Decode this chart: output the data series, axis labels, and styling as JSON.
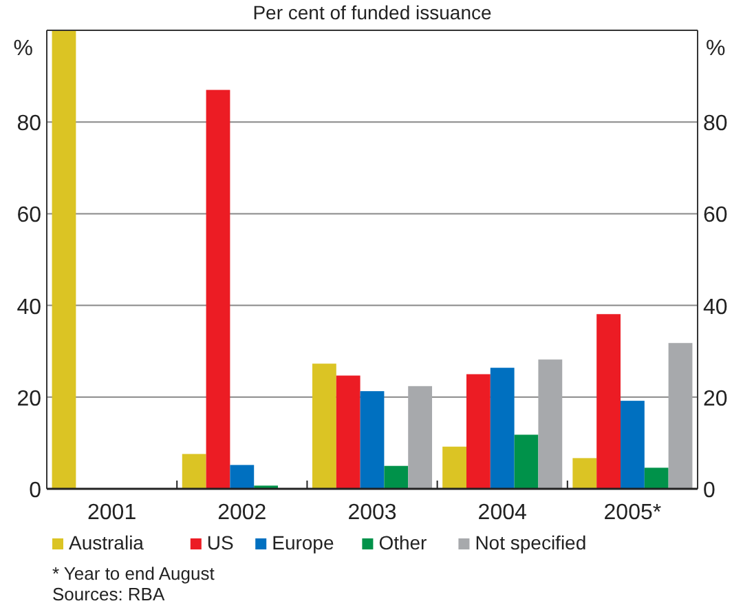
{
  "chart_data": {
    "type": "bar",
    "title": "Per cent of funded issuance",
    "ylabel": "%",
    "y2label": "%",
    "categories": [
      "2001",
      "2002",
      "2003",
      "2004",
      "2005*"
    ],
    "series": [
      {
        "name": "Australia",
        "color": "#dbc424",
        "values": [
          100,
          7.6,
          27.3,
          9.2,
          6.7
        ]
      },
      {
        "name": "US",
        "color": "#ec1c24",
        "values": [
          null,
          87,
          24.7,
          25,
          38.1
        ]
      },
      {
        "name": "Europe",
        "color": "#0070c0",
        "values": [
          null,
          5.2,
          21.3,
          26.4,
          19.2
        ]
      },
      {
        "name": "Other",
        "color": "#00924a",
        "values": [
          null,
          0.7,
          5,
          11.8,
          4.6
        ]
      },
      {
        "name": "Not specified",
        "color": "#a7a9ac",
        "values": [
          null,
          null,
          22.4,
          28.2,
          31.8
        ]
      }
    ],
    "ylim": [
      0,
      100
    ],
    "yticks": [
      0,
      20,
      40,
      60,
      80
    ],
    "y2lim": [
      0,
      100
    ],
    "y2ticks": [
      0,
      20,
      40,
      60,
      80
    ],
    "grid": "y",
    "legend": "bottom",
    "annotations": [
      "* Year to end August",
      "Sources: RBA"
    ]
  }
}
